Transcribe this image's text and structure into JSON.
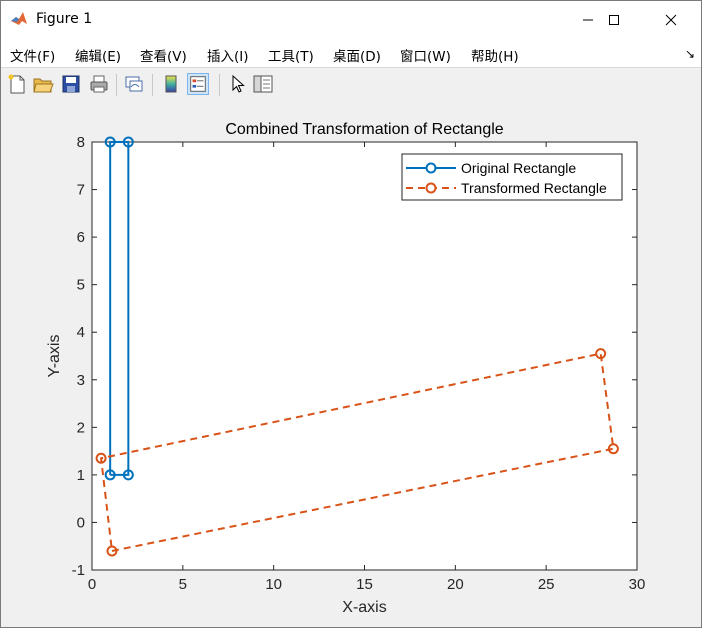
{
  "window": {
    "title": "Figure 1",
    "minimize_icon": "minimize-icon",
    "maximize_icon": "maximize-icon",
    "close_icon": "close-icon"
  },
  "menubar": {
    "items": [
      "文件(F)",
      "编辑(E)",
      "查看(V)",
      "插入(I)",
      "工具(T)",
      "桌面(D)",
      "窗口(W)",
      "帮助(H)"
    ],
    "more_arrow": "↘"
  },
  "toolbar": {
    "icons": [
      "new-figure-icon",
      "open-file-icon",
      "save-icon",
      "print-icon",
      "link-plot-icon",
      "colorbar-icon",
      "legend-icon",
      "pointer-icon",
      "property-editor-icon"
    ]
  },
  "colors": {
    "original": "#0072BD",
    "transformed": "#D95319",
    "axes_bg": "#ffffff",
    "figure_bg": "#f0f0f0"
  },
  "chart_data": {
    "type": "line",
    "title": "Combined Transformation of Rectangle",
    "xlabel": "X-axis",
    "ylabel": "Y-axis",
    "xlim": [
      0,
      30
    ],
    "ylim": [
      -1,
      8
    ],
    "xticks": [
      0,
      5,
      10,
      15,
      20,
      25,
      30
    ],
    "yticks": [
      -1,
      0,
      1,
      2,
      3,
      4,
      5,
      6,
      7,
      8
    ],
    "grid": false,
    "legend_position": "top-right",
    "series": [
      {
        "name": "Original Rectangle",
        "style": "solid",
        "marker": "circle",
        "x": [
          1,
          2,
          2,
          1,
          1
        ],
        "y": [
          1,
          1,
          8,
          8,
          1
        ]
      },
      {
        "name": "Transformed Rectangle",
        "style": "dashed",
        "marker": "circle",
        "x": [
          1.1,
          28.7,
          28.0,
          0.5,
          1.1
        ],
        "y": [
          -0.6,
          1.55,
          3.55,
          1.35,
          -0.6
        ]
      }
    ]
  }
}
